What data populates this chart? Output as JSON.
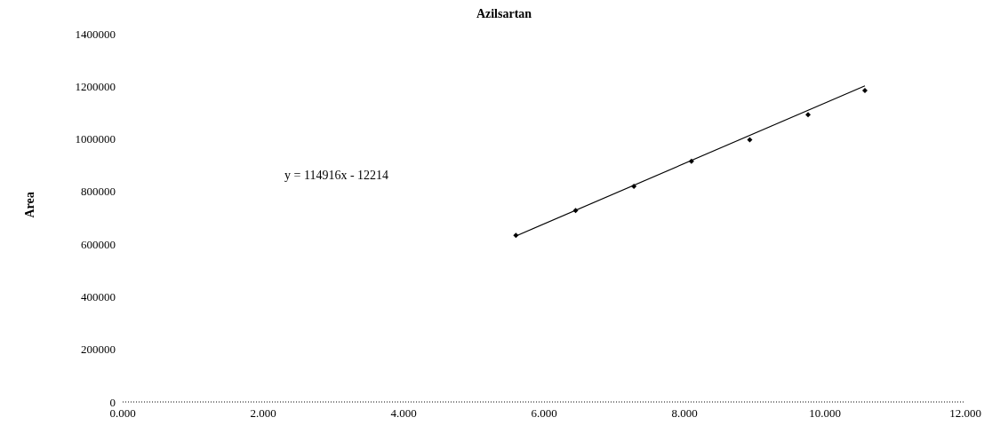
{
  "chart_data": {
    "type": "scatter",
    "title": "Azilsartan",
    "ylabel": "Area",
    "series": [
      {
        "color": "#000000",
        "marker": "diamond",
        "x": [
          5.6,
          6.45,
          7.28,
          8.1,
          8.93,
          9.76,
          10.57
        ],
        "values": [
          633000,
          728000,
          820000,
          915000,
          997000,
          1092000,
          1184000
        ]
      },
      {
        "type": "line",
        "color": "#000000",
        "marker": "none",
        "line_style": "solid",
        "x": [
          5.6,
          10.57
        ],
        "values": [
          631000,
          1202000
        ]
      }
    ],
    "annotations": [
      "y = 114916x - 12214"
    ],
    "xlim": [
      0,
      12
    ],
    "xticks": [
      {
        "value": 0,
        "label": "0.000"
      },
      {
        "value": 2,
        "label": "2.000"
      },
      {
        "value": 4,
        "label": "4.000"
      },
      {
        "value": 6,
        "label": "6.000"
      },
      {
        "value": 8,
        "label": "8.000"
      },
      {
        "value": 10,
        "label": "10.000"
      },
      {
        "value": 12,
        "label": "12.000"
      }
    ],
    "ylim": [
      0,
      1400000
    ],
    "yticks": [
      0,
      200000,
      400000,
      600000,
      800000,
      1000000,
      1200000,
      1400000
    ],
    "grid": false
  }
}
